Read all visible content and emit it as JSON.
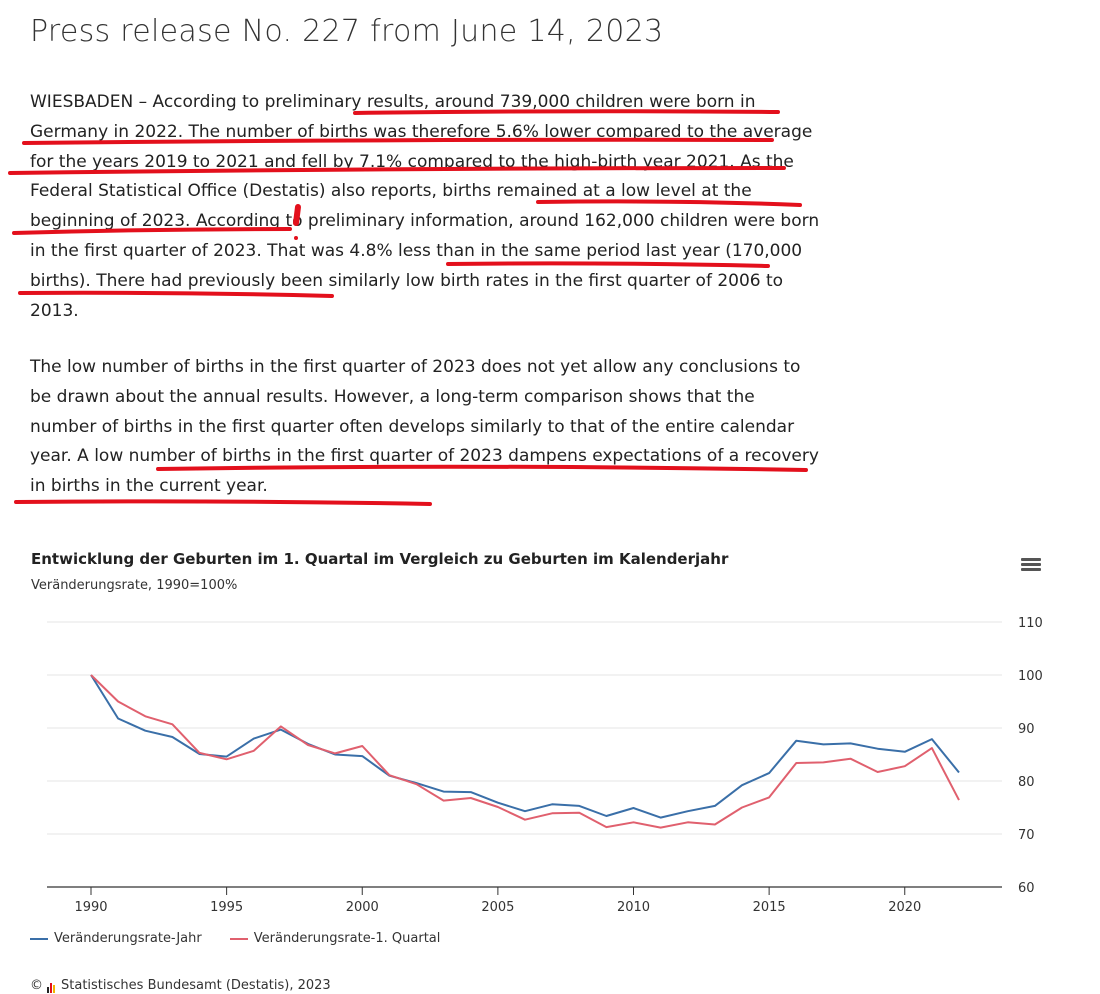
{
  "page": {
    "title": "Press release No. 227 from June 14, 2023"
  },
  "paragraphs": [
    "WIESBADEN – According to preliminary results, around 739,000 children were born in Germany in 2022. The number of births was therefore 5.6% lower compared to the average for the years 2019 to 2021 and fell by 7.1% compared to the high-birth year 2021. As the Federal Statistical Office (Destatis) also reports, births remained at a low level at the beginning of 2023. According to preliminary information, around 162,000 children were born in the first quarter of 2023. That was 4.8% less than in the same period last year (170,000 births). There had previously been similarly low birth rates in the first quarter of 2006 to 2013.",
    "The low number of births in the first quarter of 2023 does not yet allow any conclusions to be drawn about the annual results. However, a long-term comparison shows that the number of births in the first quarter often develops similarly to that of the entire calendar year. A low number of births in the first quarter of 2023 dampens expectations of a recovery in births in the current year."
  ],
  "colors": {
    "annotation": "#e3101c",
    "series_year": "#3a6fa8",
    "series_quarter": "#e0606e"
  },
  "source": {
    "copyright": "©",
    "text": "Statistisches Bundesamt (Destatis), 2023",
    "logo_icon": "bar-logo-icon"
  },
  "chart_data": {
    "type": "line",
    "title": "Entwicklung der Geburten im 1. Quartal im Vergleich zu Geburten im Kalenderjahr",
    "subtitle": "Veränderungsrate, 1990=100%",
    "xlim": [
      1990,
      2022
    ],
    "ylim": [
      60,
      110
    ],
    "xticks": [
      1990,
      1995,
      2000,
      2005,
      2010,
      2015,
      2020
    ],
    "yticks": [
      60,
      70,
      80,
      90,
      100,
      110
    ],
    "y_axis_position": "right",
    "grid": true,
    "legend_position": "bottom-left",
    "x": [
      1990,
      1991,
      1992,
      1993,
      1994,
      1995,
      1996,
      1997,
      1998,
      1999,
      2000,
      2001,
      2002,
      2003,
      2004,
      2005,
      2006,
      2007,
      2008,
      2009,
      2010,
      2011,
      2012,
      2013,
      2014,
      2015,
      2016,
      2017,
      2018,
      2019,
      2020,
      2021,
      2022
    ],
    "series": [
      {
        "name": "Veränderungsrate-Jahr",
        "values": [
          100,
          91.8,
          89.5,
          88.3,
          85.1,
          84.6,
          88.0,
          89.7,
          87.0,
          85.0,
          84.7,
          81.0,
          79.6,
          78.0,
          77.9,
          75.9,
          74.3,
          75.6,
          75.3,
          73.4,
          74.9,
          73.1,
          74.3,
          75.3,
          79.2,
          81.5,
          87.6,
          86.9,
          87.1,
          86.1,
          85.5,
          87.9,
          81.6
        ]
      },
      {
        "name": "Veränderungsrate-1. Quartal",
        "values": [
          100,
          95.0,
          92.2,
          90.7,
          85.3,
          84.1,
          85.7,
          90.3,
          86.8,
          85.2,
          86.6,
          81.1,
          79.4,
          76.3,
          76.8,
          75.1,
          72.7,
          73.9,
          74.0,
          71.3,
          72.2,
          71.2,
          72.2,
          71.8,
          75.0,
          76.9,
          83.4,
          83.5,
          84.2,
          81.7,
          82.8,
          86.2,
          76.4
        ]
      }
    ]
  }
}
